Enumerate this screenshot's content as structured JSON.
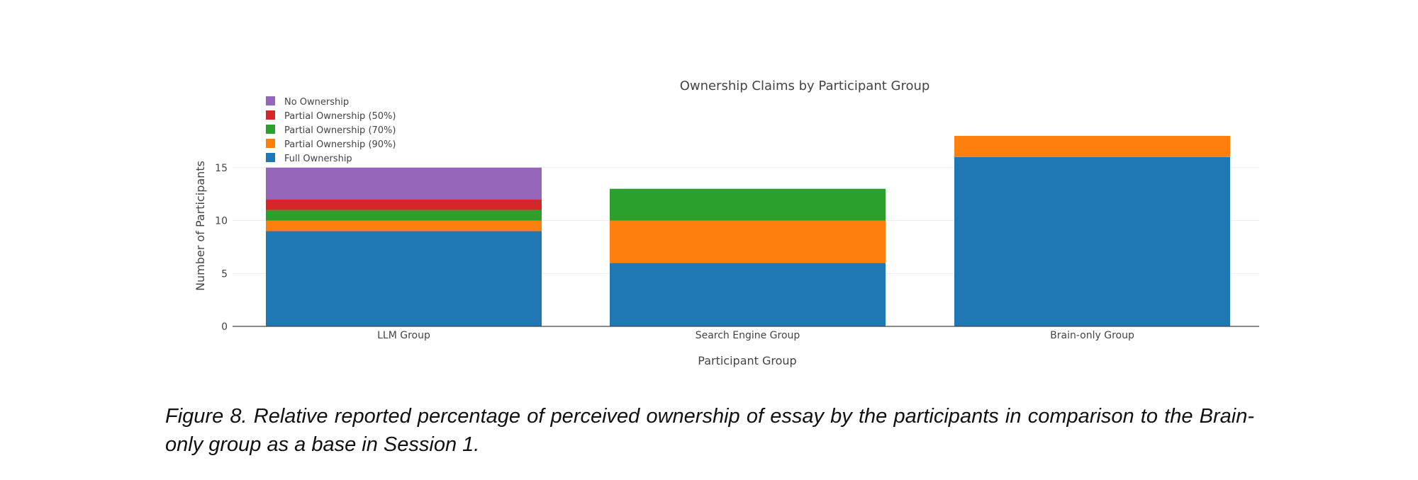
{
  "chart_data": {
    "type": "bar",
    "stacked": true,
    "title": "Ownership Claims by Participant Group",
    "xlabel": "Participant Group",
    "ylabel": "Number of Participants",
    "categories": [
      "LLM Group",
      "Search Engine Group",
      "Brain-only Group"
    ],
    "ylim": [
      0,
      18
    ],
    "yticks": [
      0,
      5,
      10,
      15
    ],
    "grid": true,
    "legend_position": "top-left",
    "series": [
      {
        "name": "Full Ownership",
        "color": "#1f77b4",
        "values": [
          9,
          6,
          16
        ]
      },
      {
        "name": "Partial Ownership (90%)",
        "color": "#ff7f0e",
        "values": [
          1,
          4,
          2
        ]
      },
      {
        "name": "Partial Ownership (70%)",
        "color": "#2ca02c",
        "values": [
          1,
          3,
          0
        ]
      },
      {
        "name": "Partial Ownership (50%)",
        "color": "#d62728",
        "values": [
          1,
          0,
          0
        ]
      },
      {
        "name": "No Ownership",
        "color": "#9467bd",
        "values": [
          3,
          0,
          0
        ]
      }
    ]
  },
  "caption": "Figure 8. Relative reported percentage of perceived ownership of essay by the participants in comparison to the Brain-only group as a base in Session 1."
}
